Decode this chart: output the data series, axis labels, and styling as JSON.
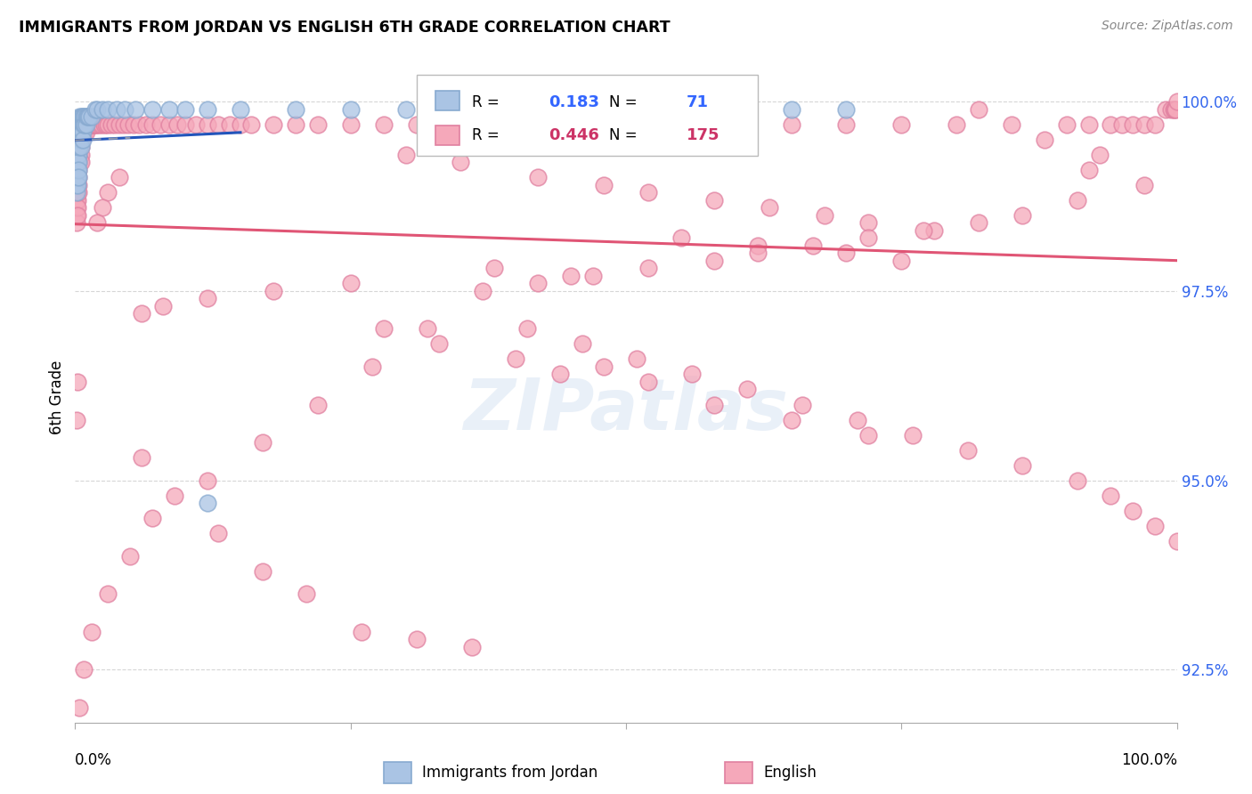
{
  "title": "IMMIGRANTS FROM JORDAN VS ENGLISH 6TH GRADE CORRELATION CHART",
  "source": "Source: ZipAtlas.com",
  "ylabel": "6th Grade",
  "yaxis_ticks": [
    0.925,
    0.95,
    0.975,
    1.0
  ],
  "yaxis_labels": [
    "92.5%",
    "95.0%",
    "97.5%",
    "100.0%"
  ],
  "blue_R": 0.183,
  "blue_N": 71,
  "pink_R": 0.446,
  "pink_N": 175,
  "blue_color": "#aac4e4",
  "pink_color": "#f5a8ba",
  "blue_line_color": "#2255bb",
  "pink_line_color": "#e05575",
  "blue_edge_color": "#88aad0",
  "pink_edge_color": "#e080a0",
  "watermark": "ZIPatlas",
  "blue_points_x": [
    0.001,
    0.001,
    0.001,
    0.001,
    0.001,
    0.002,
    0.002,
    0.002,
    0.002,
    0.002,
    0.002,
    0.002,
    0.003,
    0.003,
    0.003,
    0.003,
    0.003,
    0.003,
    0.003,
    0.003,
    0.004,
    0.004,
    0.004,
    0.004,
    0.004,
    0.005,
    0.005,
    0.005,
    0.005,
    0.005,
    0.006,
    0.006,
    0.006,
    0.007,
    0.007,
    0.007,
    0.007,
    0.008,
    0.008,
    0.009,
    0.009,
    0.01,
    0.01,
    0.011,
    0.012,
    0.013,
    0.015,
    0.018,
    0.02,
    0.025,
    0.03,
    0.038,
    0.045,
    0.055,
    0.07,
    0.085,
    0.1,
    0.12,
    0.15,
    0.2,
    0.25,
    0.3,
    0.35,
    0.4,
    0.45,
    0.5,
    0.55,
    0.6,
    0.65,
    0.7,
    0.12
  ],
  "blue_points_y": [
    0.992,
    0.991,
    0.99,
    0.989,
    0.988,
    0.995,
    0.994,
    0.993,
    0.992,
    0.991,
    0.99,
    0.989,
    0.997,
    0.996,
    0.995,
    0.994,
    0.993,
    0.992,
    0.991,
    0.99,
    0.998,
    0.997,
    0.996,
    0.995,
    0.994,
    0.998,
    0.997,
    0.996,
    0.995,
    0.994,
    0.998,
    0.997,
    0.996,
    0.998,
    0.997,
    0.996,
    0.995,
    0.998,
    0.997,
    0.998,
    0.997,
    0.998,
    0.997,
    0.998,
    0.998,
    0.998,
    0.998,
    0.999,
    0.999,
    0.999,
    0.999,
    0.999,
    0.999,
    0.999,
    0.999,
    0.999,
    0.999,
    0.999,
    0.999,
    0.999,
    0.999,
    0.999,
    0.999,
    0.999,
    0.999,
    0.999,
    0.999,
    0.999,
    0.999,
    0.999,
    0.947
  ],
  "pink_points_x": [
    0.001,
    0.001,
    0.001,
    0.001,
    0.001,
    0.002,
    0.002,
    0.002,
    0.002,
    0.002,
    0.002,
    0.003,
    0.003,
    0.003,
    0.003,
    0.003,
    0.003,
    0.004,
    0.004,
    0.004,
    0.004,
    0.005,
    0.005,
    0.005,
    0.005,
    0.005,
    0.006,
    0.006,
    0.006,
    0.007,
    0.007,
    0.008,
    0.008,
    0.009,
    0.009,
    0.01,
    0.01,
    0.011,
    0.012,
    0.013,
    0.014,
    0.015,
    0.016,
    0.017,
    0.018,
    0.019,
    0.02,
    0.022,
    0.024,
    0.026,
    0.028,
    0.03,
    0.033,
    0.036,
    0.04,
    0.044,
    0.048,
    0.053,
    0.058,
    0.064,
    0.07,
    0.077,
    0.085,
    0.093,
    0.1,
    0.11,
    0.12,
    0.13,
    0.14,
    0.15,
    0.16,
    0.18,
    0.2,
    0.22,
    0.25,
    0.28,
    0.31,
    0.35,
    0.4,
    0.45,
    0.5,
    0.55,
    0.6,
    0.65,
    0.7,
    0.75,
    0.8,
    0.85,
    0.9,
    0.92,
    0.94,
    0.95,
    0.96,
    0.97,
    0.98,
    0.99,
    0.995,
    0.997,
    0.998,
    0.999,
    1.0,
    0.3,
    0.35,
    0.42,
    0.48,
    0.52,
    0.58,
    0.63,
    0.68,
    0.72,
    0.78,
    0.55,
    0.62,
    0.7,
    0.75,
    0.38,
    0.45,
    0.25,
    0.18,
    0.12,
    0.08,
    0.06,
    0.04,
    0.03,
    0.025,
    0.02,
    0.28,
    0.33,
    0.4,
    0.48,
    0.44,
    0.52,
    0.58,
    0.65,
    0.72,
    0.82,
    0.88,
    0.93,
    0.92,
    0.97,
    0.91,
    0.86,
    0.82,
    0.77,
    0.72,
    0.67,
    0.62,
    0.58,
    0.52,
    0.47,
    0.42,
    0.37,
    0.32,
    0.27,
    0.22,
    0.17,
    0.12,
    0.07,
    0.05,
    0.03,
    0.015,
    0.008,
    0.004,
    0.002,
    0.001,
    0.06,
    0.09,
    0.13,
    0.17,
    0.21,
    0.26,
    0.31,
    0.36,
    0.41,
    0.46,
    0.51,
    0.56,
    0.61,
    0.66,
    0.71,
    0.76,
    0.81,
    0.86,
    0.91,
    0.94,
    0.96,
    0.98,
    1.0
  ],
  "pink_points_y": [
    0.988,
    0.987,
    0.986,
    0.985,
    0.984,
    0.99,
    0.989,
    0.988,
    0.987,
    0.986,
    0.985,
    0.993,
    0.992,
    0.991,
    0.99,
    0.989,
    0.988,
    0.995,
    0.994,
    0.993,
    0.992,
    0.996,
    0.995,
    0.994,
    0.993,
    0.992,
    0.997,
    0.996,
    0.995,
    0.997,
    0.996,
    0.997,
    0.996,
    0.997,
    0.996,
    0.997,
    0.996,
    0.997,
    0.997,
    0.997,
    0.997,
    0.997,
    0.997,
    0.997,
    0.997,
    0.997,
    0.997,
    0.997,
    0.997,
    0.997,
    0.997,
    0.997,
    0.997,
    0.997,
    0.997,
    0.997,
    0.997,
    0.997,
    0.997,
    0.997,
    0.997,
    0.997,
    0.997,
    0.997,
    0.997,
    0.997,
    0.997,
    0.997,
    0.997,
    0.997,
    0.997,
    0.997,
    0.997,
    0.997,
    0.997,
    0.997,
    0.997,
    0.997,
    0.997,
    0.997,
    0.997,
    0.997,
    0.997,
    0.997,
    0.997,
    0.997,
    0.997,
    0.997,
    0.997,
    0.997,
    0.997,
    0.997,
    0.997,
    0.997,
    0.997,
    0.999,
    0.999,
    0.999,
    0.999,
    0.999,
    1.0,
    0.993,
    0.992,
    0.99,
    0.989,
    0.988,
    0.987,
    0.986,
    0.985,
    0.984,
    0.983,
    0.982,
    0.981,
    0.98,
    0.979,
    0.978,
    0.977,
    0.976,
    0.975,
    0.974,
    0.973,
    0.972,
    0.99,
    0.988,
    0.986,
    0.984,
    0.97,
    0.968,
    0.966,
    0.965,
    0.964,
    0.963,
    0.96,
    0.958,
    0.956,
    0.999,
    0.995,
    0.993,
    0.991,
    0.989,
    0.987,
    0.985,
    0.984,
    0.983,
    0.982,
    0.981,
    0.98,
    0.979,
    0.978,
    0.977,
    0.976,
    0.975,
    0.97,
    0.965,
    0.96,
    0.955,
    0.95,
    0.945,
    0.94,
    0.935,
    0.93,
    0.925,
    0.92,
    0.963,
    0.958,
    0.953,
    0.948,
    0.943,
    0.938,
    0.935,
    0.93,
    0.929,
    0.928,
    0.97,
    0.968,
    0.966,
    0.964,
    0.962,
    0.96,
    0.958,
    0.956,
    0.954,
    0.952,
    0.95,
    0.948,
    0.946,
    0.944,
    0.942,
    0.94,
    0.938,
    0.936,
    0.934,
    0.932,
    0.93,
    0.928,
    1.0
  ]
}
